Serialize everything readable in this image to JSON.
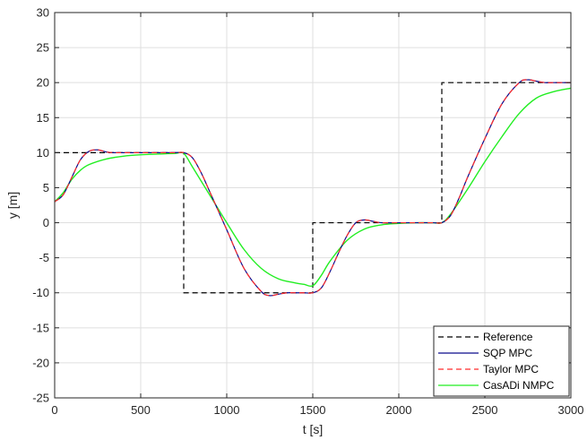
{
  "chart_data": {
    "type": "line",
    "title": "",
    "xlabel": "t [s]",
    "ylabel": "y [m]",
    "xlim": [
      0,
      3000
    ],
    "ylim": [
      -25,
      30
    ],
    "xticks": [
      0,
      500,
      1000,
      1500,
      2000,
      2500,
      3000
    ],
    "yticks": [
      -25,
      -20,
      -15,
      -10,
      -5,
      0,
      5,
      10,
      15,
      20,
      25,
      30
    ],
    "xtick_labels": [
      "0",
      "500",
      "1000",
      "1500",
      "2000",
      "2500",
      "3000"
    ],
    "ytick_labels": [
      "-25",
      "-20",
      "-15",
      "-10",
      "-5",
      "0",
      "5",
      "10",
      "15",
      "20",
      "25",
      "30"
    ],
    "grid": true,
    "legend_position": "bottom-right",
    "series": [
      {
        "name": "Reference",
        "color": "#000000",
        "dash": "dashed",
        "x": [
          0,
          750,
          750,
          1500,
          1500,
          2250,
          2250,
          3000
        ],
        "y": [
          10,
          10,
          -10,
          -10,
          0,
          0,
          20,
          20
        ]
      },
      {
        "name": "SQP MPC",
        "color": "#0a0a8c",
        "dash": "solid",
        "x": [
          0,
          50,
          100,
          150,
          200,
          250,
          300,
          350,
          400,
          500,
          600,
          700,
          750,
          800,
          850,
          900,
          1000,
          1100,
          1200,
          1250,
          1300,
          1350,
          1400,
          1450,
          1500,
          1550,
          1600,
          1650,
          1700,
          1750,
          1800,
          1850,
          1900,
          2000,
          2100,
          2200,
          2250,
          2300,
          2350,
          2400,
          2500,
          2600,
          2700,
          2750,
          2800,
          2850,
          2900,
          3000
        ],
        "y": [
          3,
          4,
          6.5,
          9,
          10.2,
          10.4,
          10.1,
          10,
          10,
          10,
          10,
          10,
          10,
          9.3,
          7.2,
          4.5,
          -1,
          -6.5,
          -9.8,
          -10.4,
          -10.2,
          -10,
          -10,
          -10,
          -10,
          -9.3,
          -7,
          -4.3,
          -1.8,
          0,
          0.4,
          0.2,
          0,
          0,
          0,
          0,
          0,
          1,
          3.5,
          6.5,
          12,
          17,
          20,
          20.4,
          20.2,
          20,
          20,
          20
        ]
      },
      {
        "name": "Taylor MPC",
        "color": "#ff2a2a",
        "dash": "dashed",
        "x": [
          0,
          50,
          100,
          150,
          200,
          250,
          300,
          350,
          400,
          500,
          600,
          700,
          750,
          800,
          850,
          900,
          1000,
          1100,
          1200,
          1250,
          1300,
          1350,
          1400,
          1450,
          1500,
          1550,
          1600,
          1650,
          1700,
          1750,
          1800,
          1850,
          1900,
          2000,
          2100,
          2200,
          2250,
          2300,
          2350,
          2400,
          2500,
          2600,
          2700,
          2750,
          2800,
          2850,
          2900,
          3000
        ],
        "y": [
          3,
          4,
          6.5,
          9,
          10.2,
          10.4,
          10.1,
          10,
          10,
          10,
          10,
          10,
          10,
          9.3,
          7.2,
          4.5,
          -1,
          -6.5,
          -9.8,
          -10.4,
          -10.2,
          -10,
          -10,
          -10,
          -10,
          -9.3,
          -7,
          -4.3,
          -1.8,
          0,
          0.4,
          0.2,
          0,
          0,
          0,
          0,
          0,
          1,
          3.5,
          6.5,
          12,
          17,
          20,
          20.4,
          20.2,
          20,
          20,
          20
        ]
      },
      {
        "name": "CasADi NMPC",
        "color": "#22ee22",
        "dash": "solid",
        "x": [
          0,
          50,
          100,
          150,
          200,
          300,
          400,
          500,
          600,
          700,
          750,
          800,
          900,
          1000,
          1100,
          1200,
          1300,
          1400,
          1450,
          1500,
          1550,
          1600,
          1700,
          1800,
          1900,
          2000,
          2100,
          2200,
          2250,
          2300,
          2400,
          2500,
          2600,
          2700,
          2800,
          2900,
          3000
        ],
        "y": [
          3,
          4.3,
          6.2,
          7.5,
          8.3,
          9.1,
          9.5,
          9.7,
          9.8,
          9.9,
          9.9,
          8,
          4,
          0,
          -3.8,
          -6.5,
          -8,
          -8.6,
          -8.8,
          -9,
          -7.5,
          -5.5,
          -2.5,
          -0.9,
          -0.3,
          -0.1,
          0,
          0,
          0,
          1.2,
          4.8,
          8.7,
          12.3,
          15.6,
          17.8,
          18.7,
          19.2
        ]
      }
    ]
  }
}
